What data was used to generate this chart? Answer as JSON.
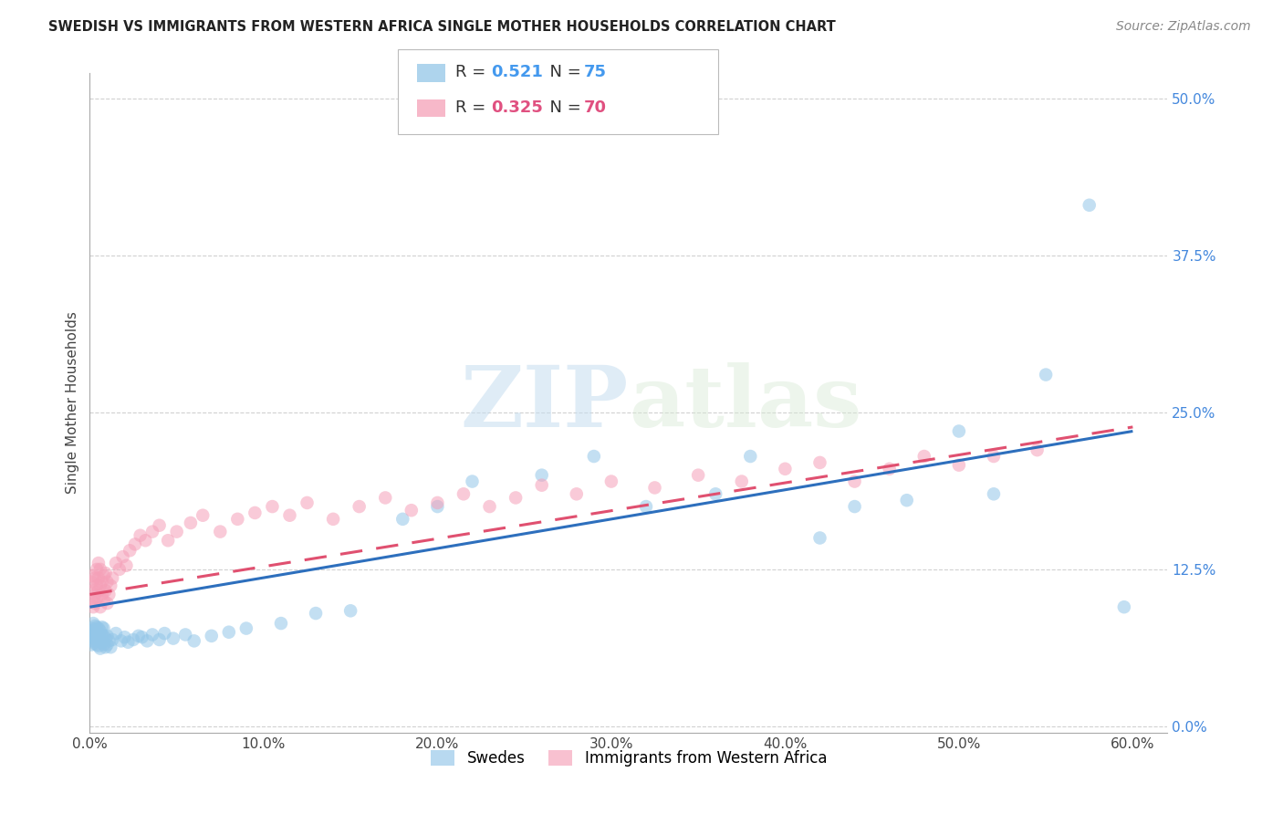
{
  "title": "SWEDISH VS IMMIGRANTS FROM WESTERN AFRICA SINGLE MOTHER HOUSEHOLDS CORRELATION CHART",
  "source": "Source: ZipAtlas.com",
  "xlabel_ticks": [
    "0.0%",
    "10.0%",
    "20.0%",
    "30.0%",
    "40.0%",
    "50.0%",
    "60.0%"
  ],
  "xlabel_vals": [
    0.0,
    0.1,
    0.2,
    0.3,
    0.4,
    0.5,
    0.6
  ],
  "ylabel_ticks": [
    "0.0%",
    "12.5%",
    "25.0%",
    "37.5%",
    "50.0%"
  ],
  "ylabel_vals": [
    0.0,
    0.125,
    0.25,
    0.375,
    0.5
  ],
  "ylabel_label": "Single Mother Households",
  "legend_swedes": "Swedes",
  "legend_immigrants": "Immigrants from Western Africa",
  "R_swedes": 0.521,
  "N_swedes": 75,
  "R_immigrants": 0.325,
  "N_immigrants": 70,
  "swedes_color": "#93c6e8",
  "immigrants_color": "#f5a0b8",
  "swedes_line_color": "#2d6fbd",
  "immigrants_line_color": "#e05070",
  "watermark_zip": "ZIP",
  "watermark_atlas": "atlas",
  "xlim": [
    0.0,
    0.62
  ],
  "ylim": [
    -0.005,
    0.52
  ],
  "background_color": "#ffffff",
  "grid_color": "#cccccc",
  "swedes_x": [
    0.001,
    0.001,
    0.001,
    0.002,
    0.002,
    0.002,
    0.002,
    0.002,
    0.003,
    0.003,
    0.003,
    0.003,
    0.003,
    0.004,
    0.004,
    0.004,
    0.004,
    0.004,
    0.005,
    0.005,
    0.005,
    0.005,
    0.005,
    0.006,
    0.006,
    0.006,
    0.007,
    0.007,
    0.007,
    0.008,
    0.008,
    0.008,
    0.009,
    0.009,
    0.01,
    0.01,
    0.011,
    0.012,
    0.013,
    0.015,
    0.018,
    0.02,
    0.022,
    0.025,
    0.028,
    0.03,
    0.033,
    0.036,
    0.04,
    0.043,
    0.048,
    0.055,
    0.06,
    0.07,
    0.08,
    0.09,
    0.11,
    0.13,
    0.15,
    0.18,
    0.2,
    0.22,
    0.26,
    0.29,
    0.32,
    0.36,
    0.38,
    0.42,
    0.44,
    0.47,
    0.5,
    0.52,
    0.55,
    0.575,
    0.595
  ],
  "swedes_y": [
    0.072,
    0.078,
    0.065,
    0.07,
    0.075,
    0.068,
    0.082,
    0.076,
    0.066,
    0.073,
    0.08,
    0.071,
    0.077,
    0.065,
    0.072,
    0.079,
    0.069,
    0.075,
    0.064,
    0.071,
    0.078,
    0.068,
    0.074,
    0.062,
    0.07,
    0.076,
    0.067,
    0.073,
    0.079,
    0.065,
    0.072,
    0.078,
    0.063,
    0.07,
    0.065,
    0.072,
    0.068,
    0.063,
    0.069,
    0.074,
    0.068,
    0.071,
    0.067,
    0.069,
    0.072,
    0.071,
    0.068,
    0.073,
    0.069,
    0.074,
    0.07,
    0.073,
    0.068,
    0.072,
    0.075,
    0.078,
    0.082,
    0.09,
    0.092,
    0.165,
    0.175,
    0.195,
    0.2,
    0.215,
    0.175,
    0.185,
    0.215,
    0.15,
    0.175,
    0.18,
    0.235,
    0.185,
    0.28,
    0.415,
    0.095
  ],
  "immigrants_x": [
    0.001,
    0.001,
    0.002,
    0.002,
    0.002,
    0.003,
    0.003,
    0.003,
    0.004,
    0.004,
    0.004,
    0.005,
    0.005,
    0.005,
    0.006,
    0.006,
    0.006,
    0.007,
    0.007,
    0.008,
    0.008,
    0.009,
    0.009,
    0.01,
    0.01,
    0.011,
    0.012,
    0.013,
    0.015,
    0.017,
    0.019,
    0.021,
    0.023,
    0.026,
    0.029,
    0.032,
    0.036,
    0.04,
    0.045,
    0.05,
    0.058,
    0.065,
    0.075,
    0.085,
    0.095,
    0.105,
    0.115,
    0.125,
    0.14,
    0.155,
    0.17,
    0.185,
    0.2,
    0.215,
    0.23,
    0.245,
    0.26,
    0.28,
    0.3,
    0.325,
    0.35,
    0.375,
    0.4,
    0.42,
    0.44,
    0.46,
    0.48,
    0.5,
    0.52,
    0.545
  ],
  "immigrants_y": [
    0.1,
    0.115,
    0.108,
    0.095,
    0.12,
    0.105,
    0.118,
    0.098,
    0.112,
    0.125,
    0.102,
    0.118,
    0.108,
    0.13,
    0.095,
    0.112,
    0.125,
    0.105,
    0.115,
    0.1,
    0.12,
    0.108,
    0.122,
    0.098,
    0.115,
    0.105,
    0.112,
    0.118,
    0.13,
    0.125,
    0.135,
    0.128,
    0.14,
    0.145,
    0.152,
    0.148,
    0.155,
    0.16,
    0.148,
    0.155,
    0.162,
    0.168,
    0.155,
    0.165,
    0.17,
    0.175,
    0.168,
    0.178,
    0.165,
    0.175,
    0.182,
    0.172,
    0.178,
    0.185,
    0.175,
    0.182,
    0.192,
    0.185,
    0.195,
    0.19,
    0.2,
    0.195,
    0.205,
    0.21,
    0.195,
    0.205,
    0.215,
    0.208,
    0.215,
    0.22
  ]
}
